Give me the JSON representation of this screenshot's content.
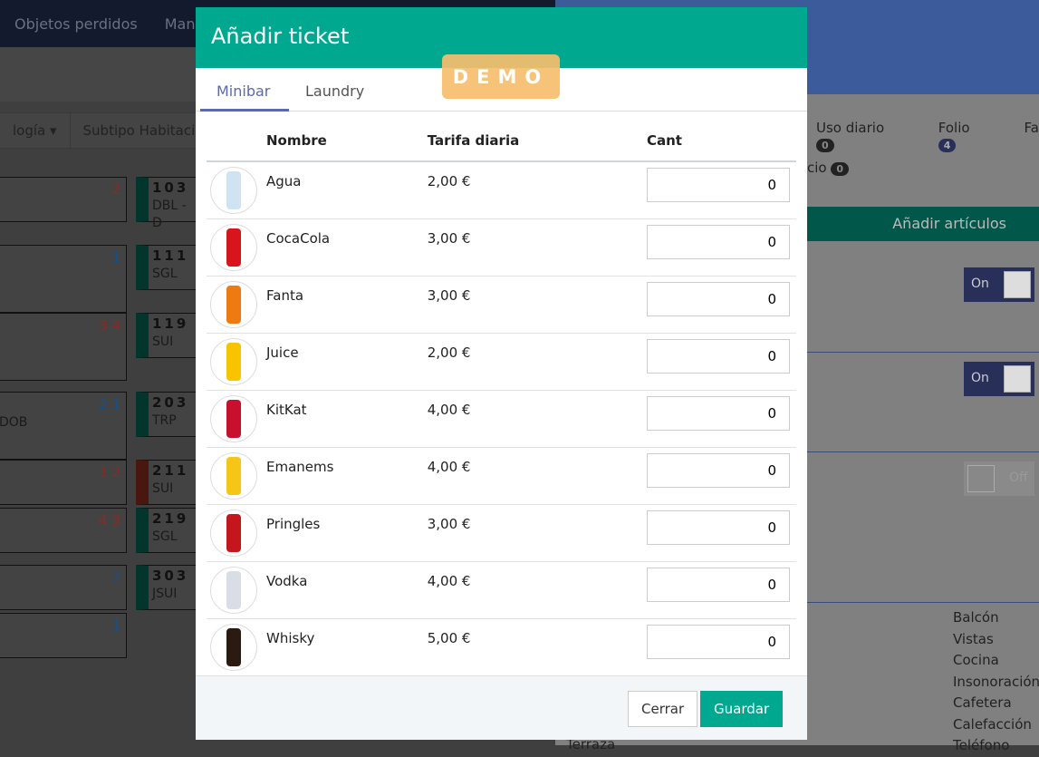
{
  "nav": {
    "items": [
      "Objetos perdidos",
      "Mante"
    ]
  },
  "filters": [
    "logía ▾",
    "Subtipo Habitación"
  ],
  "rooms": [
    {
      "number": "103",
      "type": "DBL - D",
      "occ": "2"
    },
    {
      "number": "111",
      "type": "SGL",
      "occ": "1"
    },
    {
      "number": "119",
      "type": "SUI",
      "occ": "3 4"
    },
    {
      "number": "203",
      "type": "TRP",
      "occ": "2 1",
      "left_type": "DOB"
    },
    {
      "number": "211",
      "type": "SUI",
      "occ": "1 2"
    },
    {
      "number": "219",
      "type": "SGL",
      "occ": "4 3"
    },
    {
      "number": "303",
      "type": "JSUI",
      "occ": "2"
    },
    {
      "occ": "1"
    }
  ],
  "right_panel": {
    "tabs": [
      {
        "label": "Uso diario",
        "badge": "0"
      },
      {
        "label": "Folio",
        "badge": "4"
      },
      {
        "label": "Fa"
      }
    ],
    "tab2": {
      "label": "cio",
      "badge": "0"
    },
    "add_items_label": "Añadir artículos",
    "toggles": [
      "On",
      "On",
      "Off"
    ],
    "amenities": [
      "Balcón",
      "Vistas",
      "Cocina",
      "Insonoración",
      "Cafetera",
      "Calefacción",
      "Teléfono"
    ],
    "bottom_label": "Terraza"
  },
  "modal": {
    "title": "Añadir ticket",
    "watermark": "DEMO",
    "tabs": [
      {
        "label": "Minibar",
        "active": true
      },
      {
        "label": "Laundry"
      }
    ],
    "columns": [
      "Nombre",
      "Tarifa diaria",
      "Cant"
    ],
    "items": [
      {
        "name": "Agua",
        "price": "2,00 €",
        "qty": "0",
        "color": "#cfe3f2"
      },
      {
        "name": "CocaCola",
        "price": "3,00 €",
        "qty": "0",
        "color": "#d8141c"
      },
      {
        "name": "Fanta",
        "price": "3,00 €",
        "qty": "0",
        "color": "#f07a12"
      },
      {
        "name": "Juice",
        "price": "2,00 €",
        "qty": "0",
        "color": "#f8c400"
      },
      {
        "name": "KitKat",
        "price": "4,00 €",
        "qty": "0",
        "color": "#c8102e"
      },
      {
        "name": "Emanems",
        "price": "4,00 €",
        "qty": "0",
        "color": "#f5c518"
      },
      {
        "name": "Pringles",
        "price": "3,00 €",
        "qty": "0",
        "color": "#c4161c"
      },
      {
        "name": "Vodka",
        "price": "4,00 €",
        "qty": "0",
        "color": "#d9dee6"
      },
      {
        "name": "Whisky",
        "price": "5,00 €",
        "qty": "0",
        "color": "#2a1a10"
      }
    ],
    "close_label": "Cerrar",
    "save_label": "Guardar"
  }
}
